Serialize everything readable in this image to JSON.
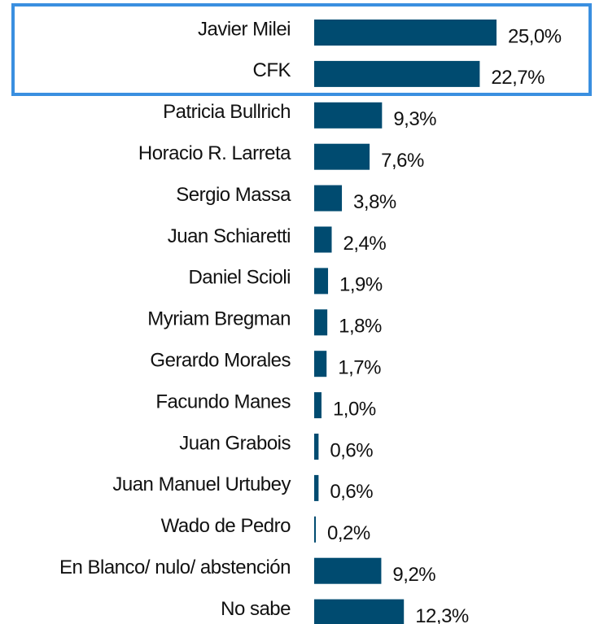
{
  "chart_data": {
    "type": "bar",
    "orientation": "horizontal",
    "color": "#004b70",
    "categories": [
      "Javier Milei",
      "CFK",
      "Patricia Bullrich",
      "Horacio R. Larreta",
      "Sergio Massa",
      "Juan Schiaretti",
      "Daniel Scioli",
      "Myriam Bregman",
      "Gerardo Morales",
      "Facundo Manes",
      "Juan Grabois",
      "Juan Manuel Urtubey",
      "Wado de Pedro",
      "En Blanco/ nulo/ abstención",
      "No sabe"
    ],
    "values": [
      25.0,
      22.7,
      9.3,
      7.6,
      3.8,
      2.4,
      1.9,
      1.8,
      1.7,
      1.0,
      0.6,
      0.6,
      0.2,
      9.2,
      12.3
    ],
    "value_labels": [
      "25,0%",
      "22,7%",
      "9,3%",
      "7,6%",
      "3,8%",
      "2,4%",
      "1,9%",
      "1,8%",
      "1,7%",
      "1,0%",
      "0,6%",
      "0,6%",
      "0,2%",
      "9,2%",
      "12,3%"
    ]
  }
}
